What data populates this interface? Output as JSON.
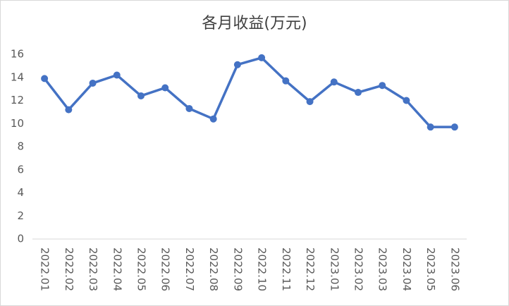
{
  "chart_data": {
    "type": "line",
    "title": "各月收益(万元)",
    "categories": [
      "2022.01",
      "2022.02",
      "2022.03",
      "2022.04",
      "2022.05",
      "2022.06",
      "2022.07",
      "2022.08",
      "2022.09",
      "2022.10",
      "2022.11",
      "2022.12",
      "2023.01",
      "2023.02",
      "2023.03",
      "2023.04",
      "2023.05",
      "2023.06"
    ],
    "values": [
      13.9,
      11.2,
      13.5,
      14.2,
      12.4,
      13.1,
      11.3,
      10.4,
      15.1,
      15.7,
      13.7,
      11.9,
      13.6,
      12.7,
      13.3,
      12.0,
      9.7,
      9.7
    ],
    "color": "#4472c4",
    "ylim": [
      0,
      16
    ],
    "yticks": [
      0,
      2,
      4,
      6,
      8,
      10,
      12,
      14,
      16
    ],
    "grid": false
  }
}
